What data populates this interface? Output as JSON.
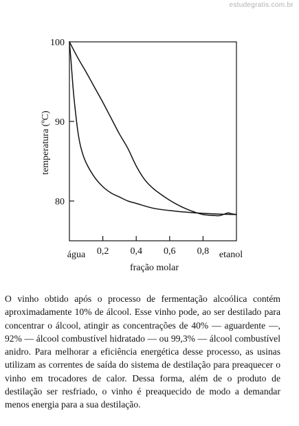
{
  "watermark": "estudegratis.com.br",
  "chart_data": {
    "type": "line",
    "xlabel": "fração molar",
    "ylabel": "temperatura (ºC)",
    "xlim": [
      0,
      1
    ],
    "ylim": [
      75,
      100
    ],
    "x_ticks": [
      {
        "value": 0,
        "label": "água"
      },
      {
        "value": 0.2,
        "label": "0,2"
      },
      {
        "value": 0.4,
        "label": "0,4"
      },
      {
        "value": 0.6,
        "label": "0,6"
      },
      {
        "value": 0.8,
        "label": "0,8"
      },
      {
        "value": 1.0,
        "label": "etanol"
      }
    ],
    "y_ticks": [
      {
        "value": 80,
        "label": "80"
      },
      {
        "value": 90,
        "label": "90"
      },
      {
        "value": 100,
        "label": "100"
      }
    ],
    "series": [
      {
        "x": [
          0,
          0.05,
          0.1,
          0.15,
          0.2,
          0.25,
          0.3,
          0.35,
          0.4,
          0.45,
          0.5,
          0.55,
          0.6,
          0.65,
          0.7,
          0.75,
          0.8,
          0.85,
          0.894,
          0.92,
          0.95,
          0.97,
          1.0
        ],
        "y": [
          100,
          98.0,
          96.2,
          94.3,
          92.4,
          90.4,
          88.4,
          86.6,
          84.4,
          82.7,
          81.6,
          80.8,
          80.1,
          79.5,
          79.0,
          78.6,
          78.3,
          78.2,
          78.15,
          78.3,
          78.5,
          78.4,
          78.3
        ]
      },
      {
        "x": [
          0,
          0.01,
          0.02,
          0.03,
          0.05,
          0.07,
          0.1,
          0.15,
          0.2,
          0.25,
          0.3,
          0.35,
          0.4,
          0.5,
          0.6,
          0.7,
          0.8,
          0.9,
          1.0
        ],
        "y": [
          100,
          97.5,
          94.7,
          92.4,
          88.8,
          86.6,
          84.8,
          83.0,
          81.8,
          81.0,
          80.5,
          80.0,
          79.7,
          79.1,
          78.8,
          78.6,
          78.45,
          78.35,
          78.3
        ]
      }
    ]
  },
  "text": {
    "paragraph": "O vinho obtido após o processo de fermentação alcoólica contém aproximadamente 10% de álcool. Esse vinho pode, ao ser destilado para concentrar o álcool, atingir as concentrações de 40% — aguardente —, 92% — álcool combustível hidratado — ou 99,3% — álcool combustível anidro. Para melhorar a eficiência energética desse processo, as usinas utilizam as correntes de saída do sistema de destilação para preaquecer o vinho em trocadores de calor. Dessa forma, além de o produto de destilação ser resfriado, o vinho é preaquecido de modo a demandar menos energia para a sua destilação."
  }
}
